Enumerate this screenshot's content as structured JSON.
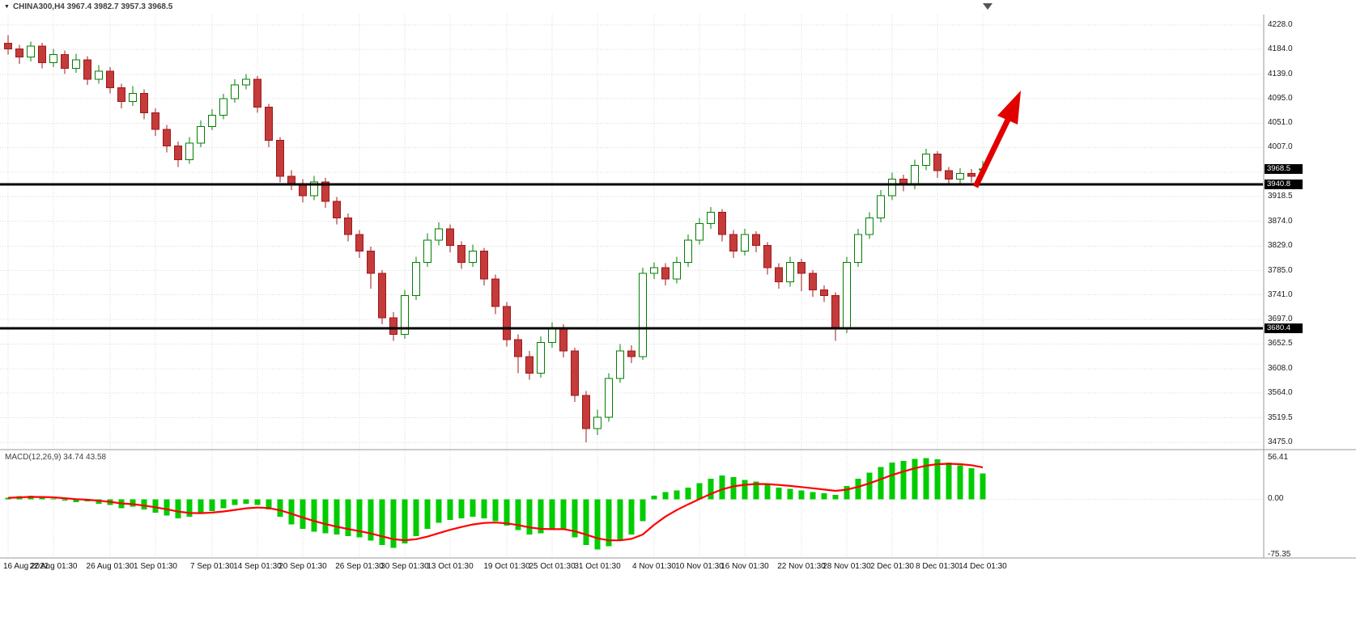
{
  "header": {
    "symbol_line": "CHINA300,H4 3967.4 3982.7 3957.3 3968.5"
  },
  "chart_data": {
    "type": "candlestick",
    "title": "CHINA300,H4",
    "timeframe": "H4",
    "ohlc_display": {
      "open": "3967.4",
      "high": "3982.7",
      "low": "3957.3",
      "close": "3968.5"
    },
    "y_axis_ticks": [
      "4228.0",
      "4184.0",
      "4139.0",
      "4095.0",
      "4051.0",
      "4007.0",
      "3962.5",
      "3918.5",
      "3874.0",
      "3829.0",
      "3785.0",
      "3741.0",
      "3697.0",
      "3652.5",
      "3608.0",
      "3564.0",
      "3519.5",
      "3475.0"
    ],
    "ylim": [
      3475,
      4228
    ],
    "x_axis_labels": [
      {
        "label": "16 Aug 2022",
        "i": 0
      },
      {
        "label": "22 Aug 01:30",
        "i": 4
      },
      {
        "label": "26 Aug 01:30",
        "i": 9
      },
      {
        "label": "1 Sep 01:30",
        "i": 13
      },
      {
        "label": "7 Sep 01:30",
        "i": 18
      },
      {
        "label": "14 Sep 01:30",
        "i": 22
      },
      {
        "label": "20 Sep 01:30",
        "i": 26
      },
      {
        "label": "26 Sep 01:30",
        "i": 31
      },
      {
        "label": "30 Sep 01:30",
        "i": 35
      },
      {
        "label": "13 Oct 01:30",
        "i": 39
      },
      {
        "label": "19 Oct 01:30",
        "i": 44
      },
      {
        "label": "25 Oct 01:30",
        "i": 48
      },
      {
        "label": "31 Oct 01:30",
        "i": 52
      },
      {
        "label": "4 Nov 01:30",
        "i": 57
      },
      {
        "label": "10 Nov 01:30",
        "i": 61
      },
      {
        "label": "16 Nov 01:30",
        "i": 65
      },
      {
        "label": "22 Nov 01:30",
        "i": 70
      },
      {
        "label": "28 Nov 01:30",
        "i": 74
      },
      {
        "label": "2 Dec 01:30",
        "i": 78
      },
      {
        "label": "8 Dec 01:30",
        "i": 82
      },
      {
        "label": "14 Dec 01:30",
        "i": 86
      }
    ],
    "candles": [
      [
        4195,
        4210,
        4175,
        4185
      ],
      [
        4185,
        4192,
        4158,
        4170
      ],
      [
        4170,
        4198,
        4162,
        4190
      ],
      [
        4190,
        4196,
        4150,
        4160
      ],
      [
        4160,
        4185,
        4152,
        4175
      ],
      [
        4175,
        4182,
        4140,
        4150
      ],
      [
        4150,
        4176,
        4142,
        4165
      ],
      [
        4165,
        4172,
        4120,
        4130
      ],
      [
        4130,
        4156,
        4122,
        4145
      ],
      [
        4145,
        4152,
        4105,
        4115
      ],
      [
        4115,
        4122,
        4078,
        4090
      ],
      [
        4090,
        4118,
        4082,
        4105
      ],
      [
        4105,
        4112,
        4058,
        4070
      ],
      [
        4070,
        4078,
        4028,
        4040
      ],
      [
        4040,
        4048,
        3998,
        4010
      ],
      [
        4010,
        4018,
        3972,
        3985
      ],
      [
        3985,
        4026,
        3978,
        4015
      ],
      [
        4015,
        4056,
        4008,
        4045
      ],
      [
        4045,
        4076,
        4038,
        4065
      ],
      [
        4065,
        4104,
        4058,
        4095
      ],
      [
        4095,
        4130,
        4088,
        4120
      ],
      [
        4120,
        4140,
        4112,
        4130
      ],
      [
        4130,
        4136,
        4070,
        4080
      ],
      [
        4080,
        4086,
        4008,
        4020
      ],
      [
        4020,
        4026,
        3944,
        3955
      ],
      [
        3955,
        3966,
        3930,
        3940
      ],
      [
        3940,
        3950,
        3908,
        3920
      ],
      [
        3920,
        3956,
        3912,
        3945
      ],
      [
        3945,
        3952,
        3898,
        3910
      ],
      [
        3910,
        3918,
        3868,
        3880
      ],
      [
        3880,
        3888,
        3838,
        3850
      ],
      [
        3850,
        3858,
        3808,
        3820
      ],
      [
        3820,
        3828,
        3752,
        3780
      ],
      [
        3780,
        3786,
        3688,
        3700
      ],
      [
        3700,
        3710,
        3658,
        3670
      ],
      [
        3670,
        3750,
        3662,
        3740
      ],
      [
        3740,
        3810,
        3732,
        3800
      ],
      [
        3800,
        3852,
        3792,
        3840
      ],
      [
        3840,
        3872,
        3830,
        3860
      ],
      [
        3860,
        3868,
        3818,
        3830
      ],
      [
        3830,
        3838,
        3788,
        3800
      ],
      [
        3800,
        3832,
        3792,
        3820
      ],
      [
        3820,
        3826,
        3758,
        3770
      ],
      [
        3770,
        3778,
        3706,
        3720
      ],
      [
        3720,
        3728,
        3648,
        3660
      ],
      [
        3660,
        3670,
        3600,
        3630
      ],
      [
        3630,
        3640,
        3588,
        3600
      ],
      [
        3600,
        3666,
        3592,
        3655
      ],
      [
        3655,
        3692,
        3646,
        3680
      ],
      [
        3680,
        3688,
        3628,
        3640
      ],
      [
        3640,
        3646,
        3548,
        3560
      ],
      [
        3560,
        3568,
        3475,
        3500
      ],
      [
        3500,
        3534,
        3488,
        3520
      ],
      [
        3520,
        3600,
        3512,
        3590
      ],
      [
        3590,
        3652,
        3582,
        3640
      ],
      [
        3640,
        3650,
        3618,
        3630
      ],
      [
        3630,
        3790,
        3624,
        3780
      ],
      [
        3780,
        3800,
        3770,
        3790
      ],
      [
        3790,
        3798,
        3758,
        3770
      ],
      [
        3770,
        3810,
        3762,
        3800
      ],
      [
        3800,
        3850,
        3792,
        3840
      ],
      [
        3840,
        3880,
        3832,
        3870
      ],
      [
        3870,
        3900,
        3860,
        3890
      ],
      [
        3890,
        3896,
        3838,
        3850
      ],
      [
        3850,
        3858,
        3808,
        3820
      ],
      [
        3820,
        3860,
        3812,
        3850
      ],
      [
        3850,
        3856,
        3818,
        3830
      ],
      [
        3830,
        3836,
        3778,
        3790
      ],
      [
        3790,
        3798,
        3752,
        3765
      ],
      [
        3765,
        3810,
        3756,
        3800
      ],
      [
        3800,
        3806,
        3748,
        3780
      ],
      [
        3780,
        3786,
        3738,
        3750
      ],
      [
        3750,
        3758,
        3728,
        3740
      ],
      [
        3740,
        3746,
        3658,
        3680
      ],
      [
        3680,
        3810,
        3672,
        3800
      ],
      [
        3800,
        3860,
        3792,
        3850
      ],
      [
        3850,
        3890,
        3842,
        3880
      ],
      [
        3880,
        3930,
        3872,
        3920
      ],
      [
        3920,
        3962,
        3912,
        3950
      ],
      [
        3950,
        3958,
        3928,
        3940
      ],
      [
        3940,
        3985,
        3932,
        3975
      ],
      [
        3975,
        4005,
        3966,
        3995
      ],
      [
        3995,
        4000,
        3952,
        3965
      ],
      [
        3965,
        3972,
        3938,
        3950
      ],
      [
        3950,
        3970,
        3942,
        3960
      ],
      [
        3960,
        3968,
        3944,
        3955
      ],
      [
        3967.4,
        3982.7,
        3957.3,
        3968.5
      ]
    ],
    "levels": [
      {
        "value": 3940.8,
        "label": "3940.8"
      },
      {
        "value": 3680.4,
        "label": "3680.4"
      }
    ],
    "current_price": {
      "value": 3968.5,
      "label": "3968.5"
    },
    "annotations": [
      {
        "type": "arrow",
        "direction": "up-right",
        "color": "#E00000"
      }
    ],
    "macd": {
      "label": "MACD(12,26,9) 34.74 43.58",
      "macd_value": 34.74,
      "signal_value": 43.58,
      "axis_ticks": [
        "56.41",
        "0.00",
        "-75.35"
      ],
      "ylim": [
        -75.35,
        56.41
      ],
      "values": [
        2,
        4,
        5,
        3,
        1,
        -2,
        -4,
        -3,
        -6,
        -8,
        -12,
        -10,
        -14,
        -18,
        -22,
        -26,
        -24,
        -20,
        -16,
        -12,
        -8,
        -6,
        -8,
        -14,
        -24,
        -34,
        -40,
        -44,
        -46,
        -48,
        -50,
        -52,
        -56,
        -62,
        -66,
        -60,
        -50,
        -40,
        -32,
        -28,
        -26,
        -24,
        -26,
        -30,
        -36,
        -42,
        -48,
        -46,
        -42,
        -40,
        -52,
        -62,
        -68,
        -64,
        -56,
        -48,
        -30,
        5,
        10,
        12,
        16,
        22,
        28,
        32,
        30,
        26,
        24,
        20,
        16,
        14,
        12,
        10,
        8,
        6,
        18,
        28,
        36,
        44,
        50,
        52,
        55,
        56,
        54,
        50,
        46,
        42,
        34.74
      ]
    },
    "colors": {
      "bull_border": "#007F00",
      "bull_fill": "#FFFFFF",
      "bear_border": "#A01818",
      "bear_fill": "#C43B3B",
      "macd_bar": "#00CC00",
      "macd_signal": "#FF0000",
      "level_line": "#000000",
      "grid": "#D9D9D9",
      "separator": "#9A9A9A",
      "arrow": "#E00000",
      "badge_bg": "#000000",
      "badge_text": "#FFFFFF"
    }
  }
}
